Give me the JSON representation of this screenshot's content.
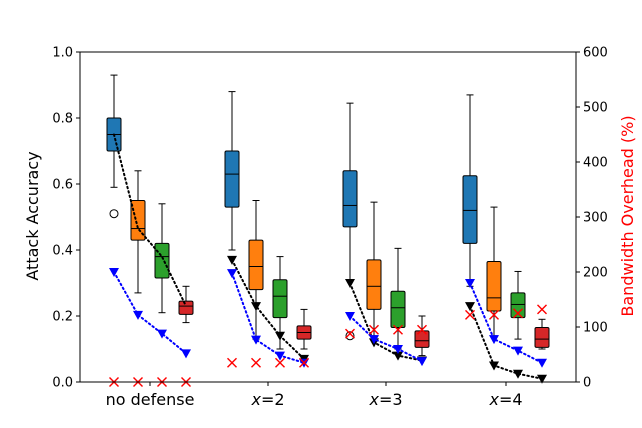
{
  "chart_data": {
    "type": "box",
    "categories": [
      {
        "prefix": "",
        "var": "",
        "suffix": "no defense"
      },
      {
        "prefix": "",
        "var": "x",
        "suffix": "=2"
      },
      {
        "prefix": "",
        "var": "x",
        "suffix": "=3"
      },
      {
        "prefix": "",
        "var": "x",
        "suffix": "=4"
      }
    ],
    "ylabel_left": "Attack Accuracy",
    "ylabel_right": "Bandwidth Overhead (%)",
    "ylim_left": [
      0.0,
      1.0
    ],
    "ylim_right": [
      0,
      600
    ],
    "yticks_left": [
      "0.0",
      "0.2",
      "0.4",
      "0.6",
      "0.8",
      "1.0"
    ],
    "yticks_right": [
      "0",
      "100",
      "200",
      "300",
      "400",
      "500",
      "600"
    ],
    "box_colors": [
      "#1f77b4",
      "#ff7f0e",
      "#2ca02c",
      "#d62728"
    ],
    "boxes": [
      [
        {
          "whislo": 0.59,
          "q1": 0.7,
          "med": 0.75,
          "q3": 0.8,
          "whishi": 0.93,
          "fliers": [
            0.51
          ]
        },
        {
          "whislo": 0.27,
          "q1": 0.43,
          "med": 0.465,
          "q3": 0.55,
          "whishi": 0.64,
          "fliers": []
        },
        {
          "whislo": 0.21,
          "q1": 0.315,
          "med": 0.38,
          "q3": 0.42,
          "whishi": 0.54,
          "fliers": []
        },
        {
          "whislo": 0.18,
          "q1": 0.205,
          "med": 0.23,
          "q3": 0.245,
          "whishi": 0.29,
          "fliers": []
        }
      ],
      [
        {
          "whislo": 0.4,
          "q1": 0.53,
          "med": 0.63,
          "q3": 0.7,
          "whishi": 0.88,
          "fliers": []
        },
        {
          "whislo": 0.13,
          "q1": 0.28,
          "med": 0.35,
          "q3": 0.43,
          "whishi": 0.55,
          "fliers": []
        },
        {
          "whislo": 0.1,
          "q1": 0.195,
          "med": 0.26,
          "q3": 0.31,
          "whishi": 0.38,
          "fliers": []
        },
        {
          "whislo": 0.1,
          "q1": 0.13,
          "med": 0.15,
          "q3": 0.17,
          "whishi": 0.22,
          "fliers": []
        }
      ],
      [
        {
          "whislo": 0.31,
          "q1": 0.47,
          "med": 0.535,
          "q3": 0.64,
          "whishi": 0.845,
          "fliers": [
            0.14
          ]
        },
        {
          "whislo": 0.14,
          "q1": 0.22,
          "med": 0.29,
          "q3": 0.37,
          "whishi": 0.545,
          "fliers": []
        },
        {
          "whislo": 0.1,
          "q1": 0.165,
          "med": 0.225,
          "q3": 0.275,
          "whishi": 0.405,
          "fliers": []
        },
        {
          "whislo": 0.08,
          "q1": 0.105,
          "med": 0.125,
          "q3": 0.155,
          "whishi": 0.2,
          "fliers": []
        }
      ],
      [
        {
          "whislo": 0.29,
          "q1": 0.42,
          "med": 0.52,
          "q3": 0.625,
          "whishi": 0.87,
          "fliers": []
        },
        {
          "whislo": 0.14,
          "q1": 0.215,
          "med": 0.255,
          "q3": 0.365,
          "whishi": 0.53,
          "fliers": []
        },
        {
          "whislo": 0.13,
          "q1": 0.195,
          "med": 0.235,
          "q3": 0.27,
          "whishi": 0.335,
          "fliers": []
        },
        {
          "whislo": 0.1,
          "q1": 0.105,
          "med": 0.13,
          "q3": 0.165,
          "whishi": 0.19,
          "fliers": []
        }
      ]
    ],
    "series": [
      {
        "kind": "line",
        "style": "dotted",
        "color": "#000000",
        "marker": "none",
        "axis": "left",
        "values": [
          [
            0.75,
            0.465,
            0.38,
            0.23
          ]
        ]
      },
      {
        "kind": "line",
        "style": "dotted",
        "color": "#000000",
        "marker": "triangle-down",
        "axis": "left",
        "values": [
          [
            null,
            null,
            null,
            null
          ],
          [
            0.37,
            0.23,
            0.14,
            0.07
          ],
          [
            0.3,
            0.12,
            0.08,
            0.065
          ],
          [
            0.23,
            0.05,
            0.025,
            0.01
          ]
        ]
      },
      {
        "kind": "line",
        "style": "dotted",
        "color": "#0000ff",
        "marker": "triangle-down",
        "axis": "right",
        "values": [
          [
            200,
            122,
            88,
            52
          ],
          [
            198,
            77,
            48,
            35
          ],
          [
            120,
            78,
            60,
            38
          ],
          [
            180,
            78,
            57,
            35
          ]
        ]
      },
      {
        "kind": "scatter",
        "color": "#ff0000",
        "marker": "x",
        "axis": "right",
        "values": [
          [
            0,
            0,
            0,
            0
          ],
          [
            35,
            35,
            35,
            35
          ],
          [
            88,
            95,
            95,
            95
          ],
          [
            122,
            122,
            125,
            132
          ]
        ]
      }
    ]
  }
}
